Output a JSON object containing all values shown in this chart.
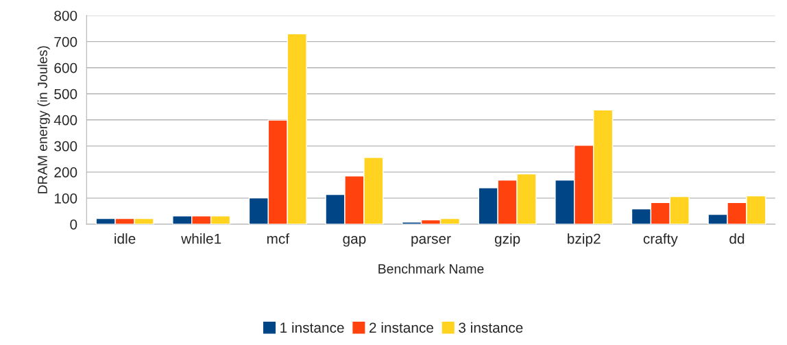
{
  "chart_data": {
    "type": "bar",
    "xlabel": "Benchmark Name",
    "ylabel": "DRAM energy (in Joules)",
    "categories": [
      "idle",
      "while1",
      "mcf",
      "gap",
      "parser",
      "gzip",
      "bzip2",
      "crafty",
      "dd"
    ],
    "series": [
      {
        "name": "1 instance",
        "color": "#004586",
        "values": [
          22,
          32,
          101,
          114,
          8,
          140,
          169,
          59,
          38
        ]
      },
      {
        "name": "2 instance",
        "color": "#ff420e",
        "values": [
          22,
          32,
          399,
          185,
          17,
          169,
          303,
          83,
          83
        ]
      },
      {
        "name": "3 instance",
        "color": "#ffd320",
        "values": [
          22,
          32,
          730,
          256,
          22,
          193,
          438,
          106,
          109
        ]
      }
    ],
    "ylim": [
      0,
      800
    ],
    "yticks": [
      0,
      100,
      200,
      300,
      400,
      500,
      600,
      700,
      800
    ],
    "grid": "y",
    "legend": "bottom"
  }
}
